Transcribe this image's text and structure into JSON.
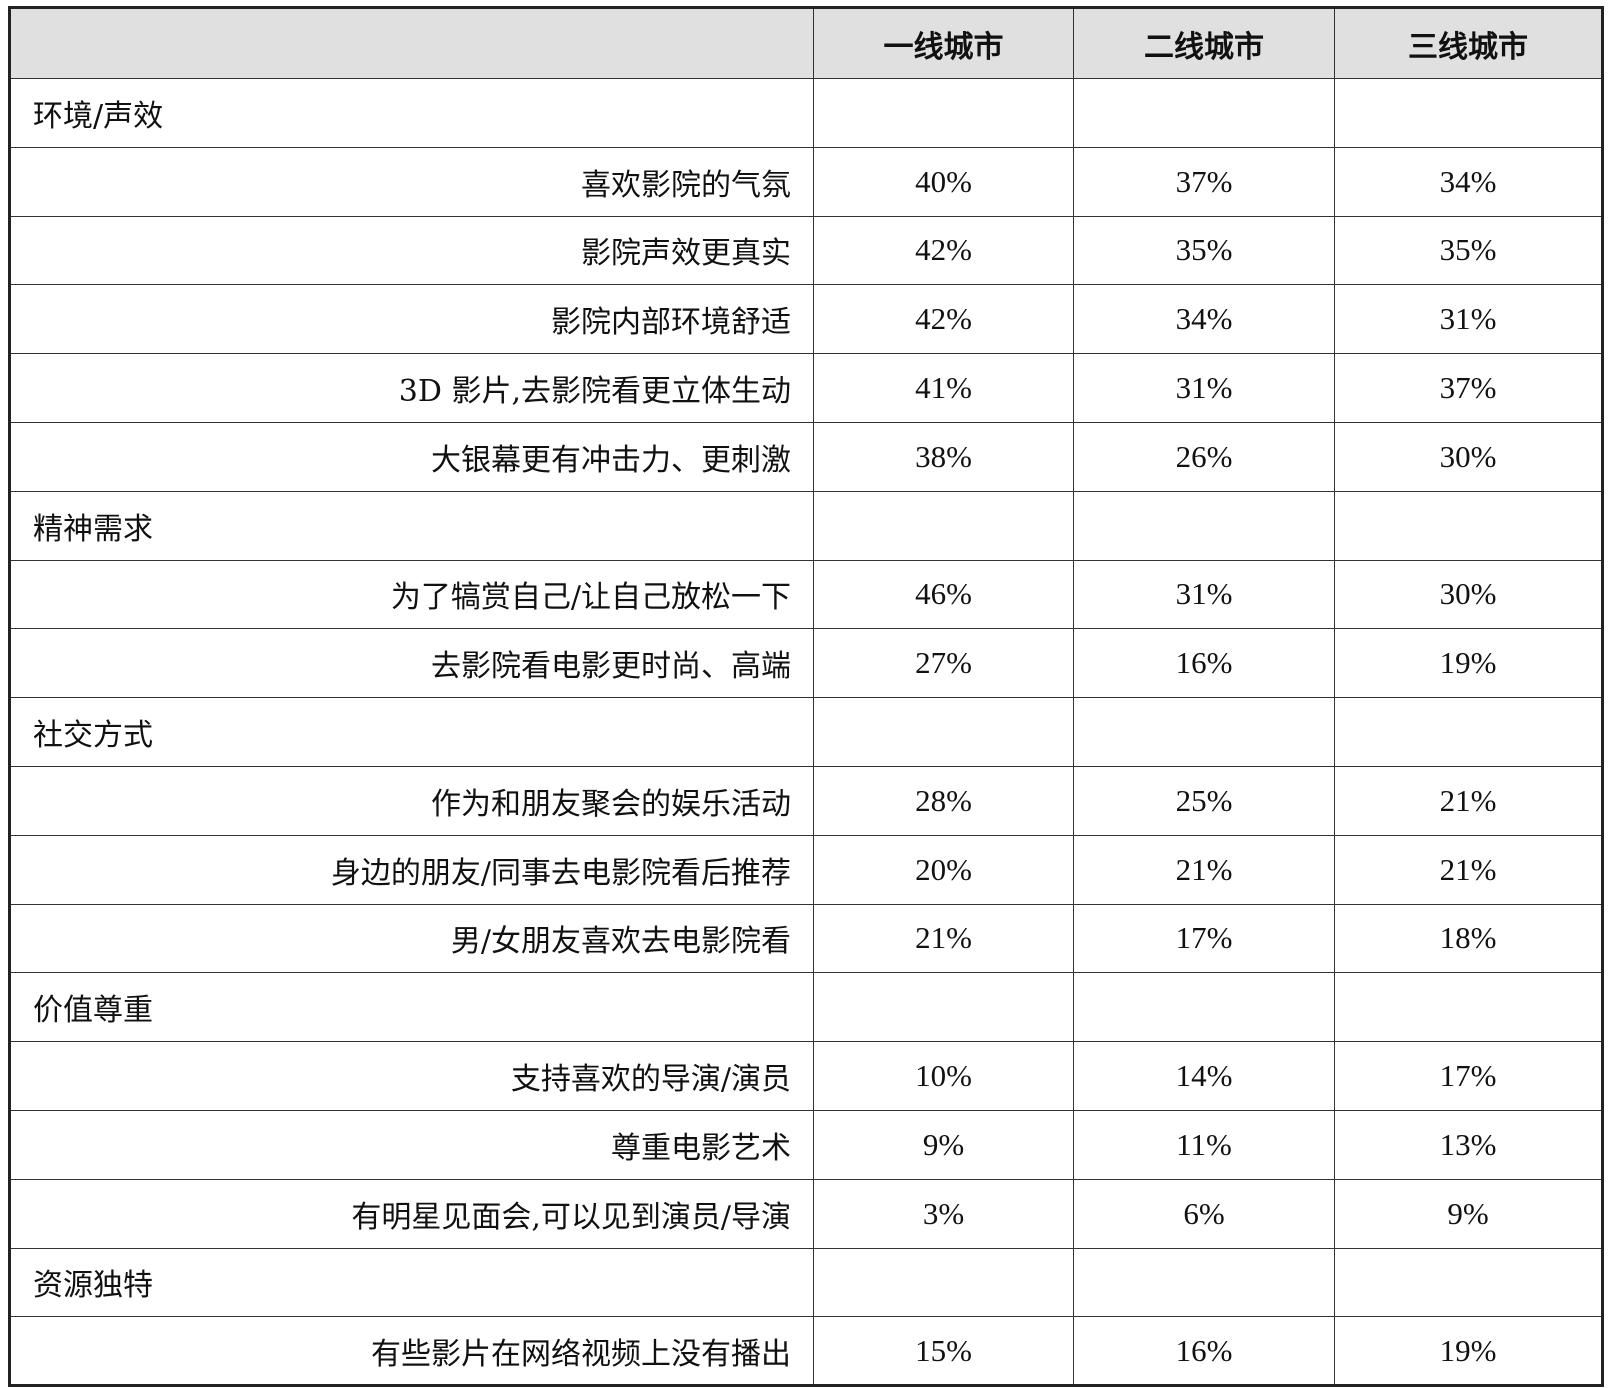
{
  "header": [
    "",
    "一线城市",
    "二线城市",
    "三线城市"
  ],
  "groups": [
    {
      "category": "环境/声效",
      "rows": [
        {
          "label": "喜欢影院的气氛",
          "values": [
            "40%",
            "37%",
            "34%"
          ]
        },
        {
          "label": "影院声效更真实",
          "values": [
            "42%",
            "35%",
            "35%"
          ]
        },
        {
          "label": "影院内部环境舒适",
          "values": [
            "42%",
            "34%",
            "31%"
          ]
        },
        {
          "label": "3D 影片,去影院看更立体生动",
          "values": [
            "41%",
            "31%",
            "37%"
          ]
        },
        {
          "label": "大银幕更有冲击力、更刺激",
          "values": [
            "38%",
            "26%",
            "30%"
          ]
        }
      ]
    },
    {
      "category": "精神需求",
      "rows": [
        {
          "label": "为了犒赏自己/让自己放松一下",
          "values": [
            "46%",
            "31%",
            "30%"
          ]
        },
        {
          "label": "去影院看电影更时尚、高端",
          "values": [
            "27%",
            "16%",
            "19%"
          ]
        }
      ]
    },
    {
      "category": "社交方式",
      "rows": [
        {
          "label": "作为和朋友聚会的娱乐活动",
          "values": [
            "28%",
            "25%",
            "21%"
          ]
        },
        {
          "label": "身边的朋友/同事去电影院看后推荐",
          "values": [
            "20%",
            "21%",
            "21%"
          ]
        },
        {
          "label": "男/女朋友喜欢去电影院看",
          "values": [
            "21%",
            "17%",
            "18%"
          ]
        }
      ]
    },
    {
      "category": "价值尊重",
      "rows": [
        {
          "label": "支持喜欢的导演/演员",
          "values": [
            "10%",
            "14%",
            "17%"
          ]
        },
        {
          "label": "尊重电影艺术",
          "values": [
            "9%",
            "11%",
            "13%"
          ]
        },
        {
          "label": "有明星见面会,可以见到演员/导演",
          "values": [
            "3%",
            "6%",
            "9%"
          ]
        }
      ]
    },
    {
      "category": "资源独特",
      "rows": [
        {
          "label": "有些影片在网络视频上没有播出",
          "values": [
            "15%",
            "16%",
            "19%"
          ]
        }
      ]
    }
  ],
  "colors": {
    "header_bg": "#e0e0e0",
    "border": "#333333"
  }
}
